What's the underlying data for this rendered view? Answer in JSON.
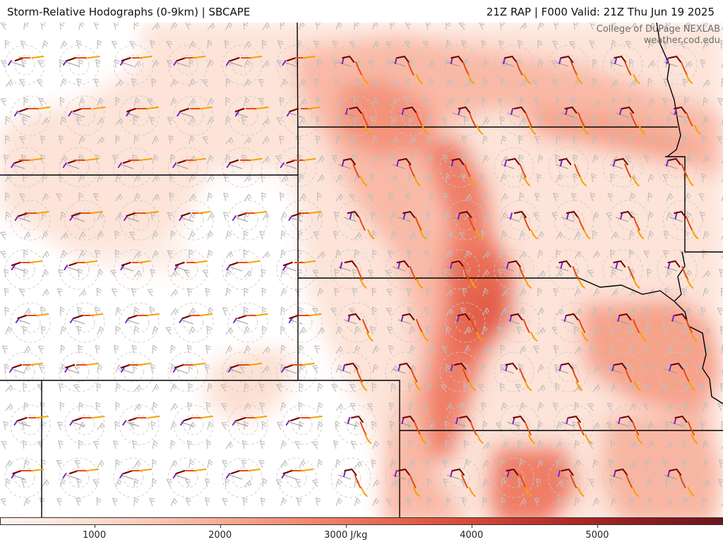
{
  "header": {
    "title": "Storm-Relative Hodographs (0-9km) | SBCAPE",
    "valid": "21Z RAP | F000 Valid: 21Z Thu Jun 19 2025"
  },
  "credit": {
    "line1": "College of DuPage NEXLAB",
    "line2": "weather.cod.edu"
  },
  "legend": {
    "ticks": [
      "1000",
      "2000",
      "3000 J/kg",
      "4000",
      "5000"
    ],
    "tick_values": [
      1000,
      2000,
      3000,
      4000,
      5000
    ],
    "range": [
      250,
      6000
    ],
    "colors": [
      "#fff4ee",
      "#fde0d4",
      "#fbc4b1",
      "#f7a38c",
      "#f08268",
      "#e4624c",
      "#d14536",
      "#b22c28",
      "#8e1c20",
      "#6a1620"
    ]
  },
  "map": {
    "hodograph_colors": [
      "#7a1fc8",
      "#6e0000",
      "#e84a10",
      "#f6a100"
    ],
    "wind_barb_color": "#bdbdbd",
    "boundary_color": "#000000"
  }
}
